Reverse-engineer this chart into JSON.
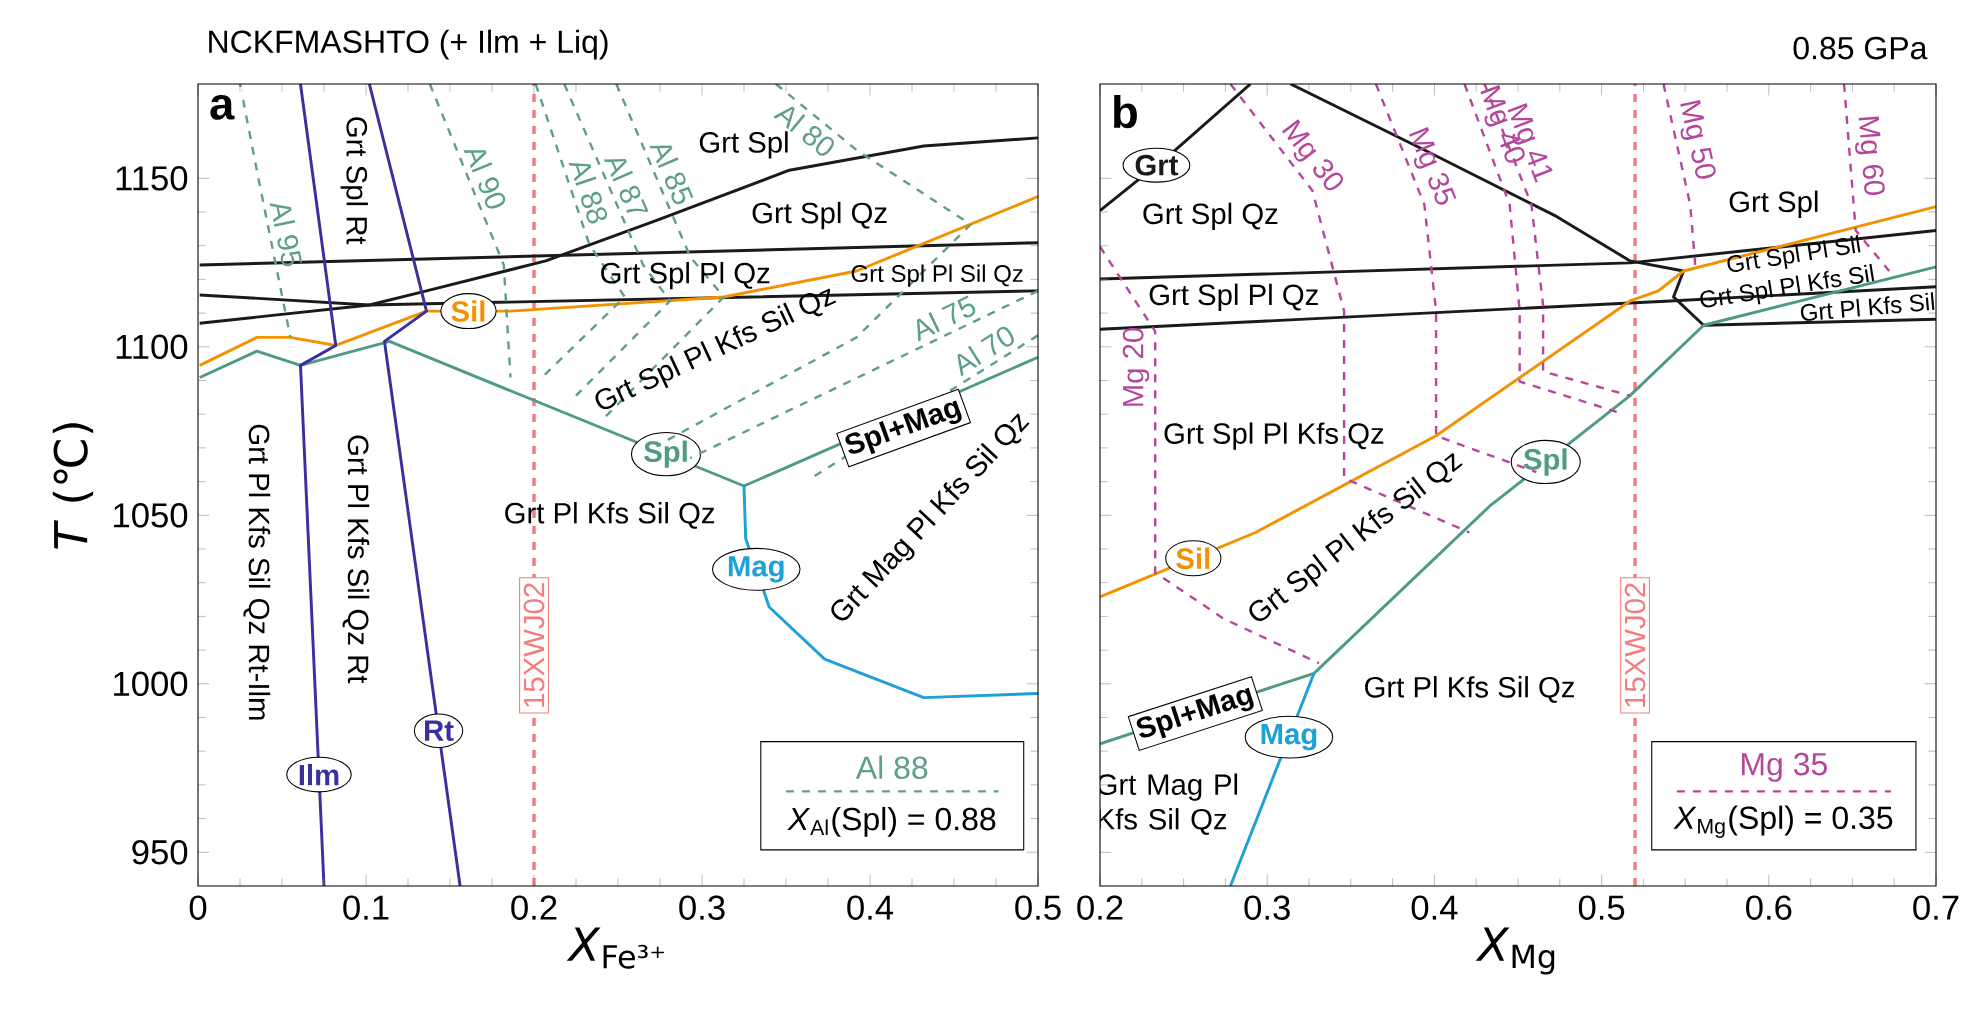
{
  "chart_data": [
    {
      "type": "line",
      "title": "NCKFMASHTO  (+ Ilm + Liq)",
      "xlabel": "*X*$_{Fe³⁺}$",
      "ylabel": "*T* (℃)",
      "xlim": [
        0,
        0.5
      ],
      "ylim": [
        940,
        1178
      ],
      "xticks": [
        0,
        0.1,
        0.2,
        0.3,
        0.4,
        0.5
      ],
      "yticks": [
        950,
        1000,
        1050,
        1100,
        1150
      ],
      "grid": false,
      "series": [
        {
          "color": "#1a1a1a",
          "x": [
            0.001,
            0.102,
            0.136,
            0.207,
            0.273,
            0.352,
            0.432,
            0.5
          ],
          "values": [
            1107,
            1112.4,
            1116.6,
            1125.5,
            1137.5,
            1152.4,
            1159.6,
            1162
          ]
        },
        {
          "color": "#1a1a1a",
          "x": [
            0.001,
            0.5
          ],
          "values": [
            1124.3,
            1130.9
          ]
        },
        {
          "color": "#1a1a1a",
          "x": [
            0.001,
            0.102,
            0.5
          ],
          "values": [
            1115.4,
            1112.4,
            1116.6
          ]
        },
        {
          "name": "Sil",
          "color": "#f39200",
          "x": [
            0.001,
            0.035,
            0.055,
            0.082,
            0.136,
            0.186,
            0.313,
            0.392,
            0.5
          ],
          "values": [
            1094.5,
            1102.8,
            1102.8,
            1100.4,
            1110.6,
            1110.6,
            1114.8,
            1122.5,
            1144.6
          ]
        },
        {
          "name": "Spl",
          "color": "#4e9a85",
          "x": [
            0.001,
            0.035,
            0.061,
            0.114,
            0.325,
            0.5
          ],
          "values": [
            1090.9,
            1098.7,
            1094.5,
            1101.6,
            1058.7,
            1096.9
          ]
        },
        {
          "name": "Mag",
          "color": "#1ea0d8",
          "x": [
            0.325,
            0.326,
            0.34,
            0.373,
            0.432,
            0.5
          ],
          "values": [
            1058.7,
            1043.1,
            1022.8,
            1007.3,
            995.9,
            997.1
          ]
        },
        {
          "name": "Ilm",
          "color": "#3b2f9e",
          "x": [
            0.061,
            0.082,
            0.061,
            0.075
          ],
          "values": [
            1178,
            1100.4,
            1094.5,
            940
          ]
        },
        {
          "name": "Rt",
          "color": "#3b2f9e",
          "x": [
            0.102,
            0.136,
            0.111,
            0.156
          ],
          "values": [
            1178,
            1110.6,
            1101.6,
            940
          ]
        },
        {
          "name": "Al 95",
          "color": "#5f9f86",
          "line_style": "dashed",
          "x": [
            0.025,
            0.035,
            0.055
          ],
          "values": [
            1178,
            1152.4,
            1102.8
          ]
        },
        {
          "name": "Al 90",
          "color": "#5f9f86",
          "line_style": "dashed",
          "x": [
            0.138,
            0.182,
            0.186
          ],
          "values": [
            1178,
            1124.3,
            1090.9
          ]
        },
        {
          "name": "Al 88",
          "color": "#5f9f86",
          "line_style": "dashed",
          "x": [
            0.201,
            0.233,
            0.254,
            0.206
          ],
          "values": [
            1178,
            1130.3,
            1114.8,
            1091.5
          ]
        },
        {
          "name": "Al 87",
          "color": "#5f9f86",
          "line_style": "dashed",
          "x": [
            0.218,
            0.265,
            0.281,
            0.225
          ],
          "values": [
            1178,
            1124.3,
            1113.6,
            1085.5
          ]
        },
        {
          "name": "Al 85",
          "color": "#5f9f86",
          "line_style": "dashed",
          "x": [
            0.249,
            0.293,
            0.313,
            0.242
          ],
          "values": [
            1178,
            1126.7,
            1114.8,
            1079
          ]
        },
        {
          "name": "Al 80",
          "color": "#5f9f86",
          "line_style": "dashed",
          "x": [
            0.344,
            0.392,
            0.46,
            0.392,
            0.273
          ],
          "values": [
            1178,
            1158.4,
            1136.3,
            1102.8,
            1070.6
          ]
        },
        {
          "name": "Al 75",
          "color": "#5f9f86",
          "line_style": "dashed",
          "x": [
            0.5,
            0.293
          ],
          "values": [
            1116.6,
            1067
          ]
        },
        {
          "name": "Al 70",
          "color": "#5f9f86",
          "line_style": "dashed",
          "x": [
            0.5,
            0.365
          ],
          "values": [
            1103.4,
            1061
          ]
        }
      ],
      "ref_lines": [
        {
          "axis": "x",
          "value": 0.2,
          "label": "15XWJ02",
          "color": "#f47c7c",
          "line_style": "dashed"
        }
      ],
      "annotations": [
        "a",
        "Grt Spl",
        "Grt Spl Qz",
        "Grt Spl Pl Qz",
        "Grt Spl Pl Sil Qz",
        "Grt Spl Pl Kfs Sil Qz",
        "Spl+Mag",
        "Grt Pl Kfs Sil Qz",
        "Grt Mag Pl Kfs Sil Qz",
        "Grt Spl Rt",
        "Grt Pl Kfs Sil Qz Rt-Ilm",
        "Grt Pl Kfs Sil Qz Rt",
        "Al 88",
        "*X*$_{Al}$(Spl) = 0.88"
      ]
    },
    {
      "type": "line",
      "title": "0.85 GPa",
      "xlabel": "*X*$_{Mg}$",
      "xlim": [
        0.2,
        0.7
      ],
      "ylim": [
        940,
        1178
      ],
      "xticks": [
        0.2,
        0.3,
        0.4,
        0.5,
        0.6,
        0.7
      ],
      "yticks": [
        950,
        1000,
        1050,
        1100,
        1150
      ],
      "tick_labels": "x",
      "grid": false,
      "series": [
        {
          "name": "Grt",
          "color": "#1a1a1a",
          "x": [
            0.2,
            0.245,
            0.29
          ],
          "values": [
            1140.4,
            1158.4,
            1178
          ]
        },
        {
          "color": "#1a1a1a",
          "x": [
            0.314,
            0.394,
            0.473,
            0.517,
            0.549
          ],
          "values": [
            1178,
            1158.4,
            1138.7,
            1125.5,
            1122.5
          ]
        },
        {
          "color": "#1a1a1a",
          "x": [
            0.2,
            0.517,
            0.7
          ],
          "values": [
            1120.1,
            1124.9,
            1134.5
          ]
        },
        {
          "color": "#1a1a1a",
          "x": [
            0.2,
            0.541,
            0.7
          ],
          "values": [
            1105.2,
            1113.6,
            1117.8
          ]
        },
        {
          "color": "#1a1a1a",
          "x": [
            0.549,
            0.543,
            0.561
          ],
          "values": [
            1122.5,
            1114.8,
            1106.4
          ]
        },
        {
          "color": "#1a1a1a",
          "x": [
            0.561,
            0.7
          ],
          "values": [
            1106.4,
            1108.2
          ]
        },
        {
          "name": "Sil",
          "color": "#f39200",
          "x": [
            0.2,
            0.293,
            0.401,
            0.517,
            0.534,
            0.549,
            0.7
          ],
          "values": [
            1025.8,
            1044.9,
            1073.6,
            1113.6,
            1116.6,
            1122.5,
            1141.6
          ]
        },
        {
          "name": "Spl",
          "color": "#4e9a85",
          "x": [
            0.2,
            0.328,
            0.433,
            0.517,
            0.561,
            0.7
          ],
          "values": [
            982.2,
            1003.1,
            1052.7,
            1085.5,
            1106.4,
            1123.7
          ]
        },
        {
          "name": "Mag",
          "color": "#1ea0d8",
          "x": [
            0.328,
            0.278
          ],
          "values": [
            1003.1,
            940
          ]
        },
        {
          "name": "Mg 20",
          "color": "#b4479b",
          "line_style": "dashed",
          "x": [
            0.2,
            0.233,
            0.233,
            0.274,
            0.331
          ],
          "values": [
            1129.7,
            1104.6,
            1033,
            1019.3,
            1006.1
          ]
        },
        {
          "name": "Mg 30",
          "color": "#b4479b",
          "line_style": "dashed",
          "x": [
            0.278,
            0.327,
            0.346,
            0.346,
            0.421
          ],
          "values": [
            1178,
            1146.4,
            1110.6,
            1061,
            1044.9
          ]
        },
        {
          "name": "Mg 35",
          "color": "#b4479b",
          "line_style": "dashed",
          "x": [
            0.365,
            0.394,
            0.401,
            0.401,
            0.461
          ],
          "values": [
            1178,
            1142.2,
            1110.6,
            1073.6,
            1062.8
          ]
        },
        {
          "name": "Mg 40",
          "color": "#b4479b",
          "line_style": "dashed",
          "x": [
            0.418,
            0.445,
            0.451,
            0.451,
            0.509
          ],
          "values": [
            1178,
            1142.2,
            1110.6,
            1089.7,
            1080.7
          ]
        },
        {
          "name": "Mg 41",
          "color": "#b4479b",
          "line_style": "dashed",
          "x": [
            0.43,
            0.458,
            0.465,
            0.465,
            0.517
          ],
          "values": [
            1178,
            1142.2,
            1112.4,
            1092.7,
            1085.5
          ]
        },
        {
          "name": "Mg 50",
          "color": "#b4479b",
          "line_style": "dashed",
          "x": [
            0.537,
            0.553,
            0.556
          ],
          "values": [
            1178,
            1142.2,
            1124.3
          ]
        },
        {
          "name": "Mg 60",
          "color": "#b4479b",
          "line_style": "dashed",
          "x": [
            0.645,
            0.652,
            0.672
          ],
          "values": [
            1178,
            1134.5,
            1122.5
          ]
        }
      ],
      "ref_lines": [
        {
          "axis": "x",
          "value": 0.52,
          "label": "15XWJ02",
          "color": "#f47c7c",
          "line_style": "dashed"
        }
      ],
      "annotations": [
        "b",
        "Grt Spl Qz",
        "Grt Spl",
        "Grt Spl Pl Qz",
        "Grt Spl Pl Sil",
        "Grt Spl Pl Kfs Sil",
        "Grt Pl Kfs Sil",
        "Grt Spl Pl Kfs Qz",
        "Grt Spl Pl Kfs Sil Qz",
        "Grt Pl Kfs Sil Qz",
        "Spl+Mag",
        "Grt Mag Pl Kfs Sil Qz",
        "Mg 35",
        "*X*$_{Mg}$(Spl) = 0.35"
      ]
    }
  ]
}
